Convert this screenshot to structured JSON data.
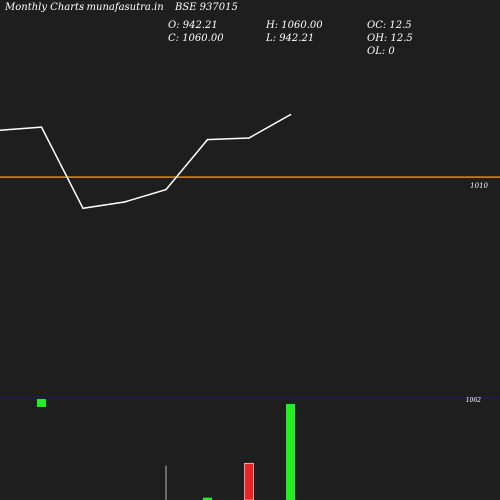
{
  "header": {
    "brand": "Monthly Charts",
    "site": "- munafasutra.in",
    "symbol": "BSE 937015",
    "open": "O: 942.21",
    "close": "C: 1060.00",
    "high": "H: 1060.00",
    "low": "L: 942.21",
    "oc": "OC: 12.5",
    "oh": "OH: 12.5",
    "ol": "OL: 0"
  },
  "colors": {
    "background": "#1e1e1e",
    "price_line": "#ffffff",
    "reference_line": "#e08a1e",
    "volume_line": "#1b1b6e",
    "volume_up": "#22ee22",
    "volume_down": "#ee2222",
    "volume_neutral": "#bbbbbb"
  },
  "chart_data": [
    {
      "type": "line",
      "title": "",
      "series": [
        {
          "values": [
            1040,
            1042,
            990,
            994,
            1002,
            1034,
            1035,
            1050
          ]
        }
      ],
      "reference_line": {
        "value": 1010,
        "label": "1010"
      },
      "ylim": [
        880,
        1085
      ]
    },
    {
      "type": "bar",
      "title": "",
      "volume_reference": {
        "label": "1062"
      },
      "bars": [
        {
          "index": 0,
          "value": 0.12,
          "color": "up"
        },
        {
          "index": 3,
          "value": 0.58,
          "color": "neutral"
        },
        {
          "index": 4,
          "value": 0.04,
          "color": "up"
        },
        {
          "index": 5,
          "value": 0.62,
          "color": "down"
        },
        {
          "index": 6,
          "value": 1.62,
          "color": "up"
        }
      ],
      "ymax": 1.72
    }
  ]
}
